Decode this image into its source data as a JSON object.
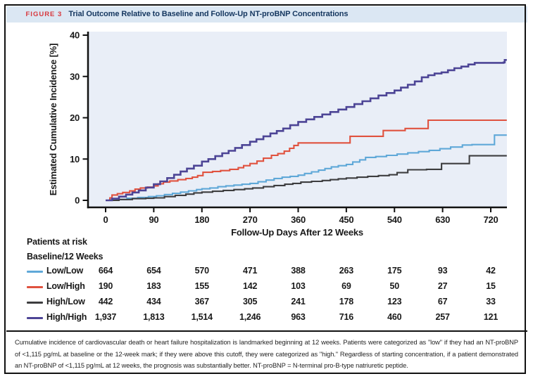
{
  "figure_header": {
    "label": "FIGURE 3",
    "title": "Trial Outcome Relative to Baseline and Follow-Up NT-proBNP Concentrations"
  },
  "chart_data": {
    "type": "line",
    "subtype": "step-cumulative-incidence",
    "title": "",
    "xlabel": "Follow-Up Days After 12 Weeks",
    "ylabel": "Estimated Cumulative Incidence [%]",
    "x_ticks": [
      0,
      90,
      180,
      270,
      360,
      450,
      540,
      630,
      720
    ],
    "y_ticks": [
      0,
      10,
      20,
      30,
      40
    ],
    "xlim": [
      0,
      760
    ],
    "ylim": [
      0,
      40
    ],
    "grid": false,
    "legend_position": "patients-at-risk-table",
    "plot_bg": "#e9eef7",
    "axis_color": "#111111",
    "series": [
      {
        "name": "Low/Low",
        "color": "#5fa8d8",
        "points": [
          [
            0,
            0
          ],
          [
            20,
            0.2
          ],
          [
            40,
            0.5
          ],
          [
            60,
            0.7
          ],
          [
            80,
            0.9
          ],
          [
            95,
            1.1
          ],
          [
            110,
            1.4
          ],
          [
            125,
            1.7
          ],
          [
            140,
            2.0
          ],
          [
            155,
            2.3
          ],
          [
            170,
            2.6
          ],
          [
            180,
            2.8
          ],
          [
            195,
            3.0
          ],
          [
            210,
            3.3
          ],
          [
            225,
            3.5
          ],
          [
            240,
            3.7
          ],
          [
            255,
            3.9
          ],
          [
            270,
            4.1
          ],
          [
            285,
            4.5
          ],
          [
            300,
            4.9
          ],
          [
            315,
            5.3
          ],
          [
            330,
            5.6
          ],
          [
            345,
            5.8
          ],
          [
            360,
            6.1
          ],
          [
            372,
            6.5
          ],
          [
            385,
            6.9
          ],
          [
            398,
            7.3
          ],
          [
            410,
            7.7
          ],
          [
            422,
            8.1
          ],
          [
            435,
            8.4
          ],
          [
            450,
            8.7
          ],
          [
            462,
            9.3
          ],
          [
            475,
            9.8
          ],
          [
            486,
            10.4
          ],
          [
            505,
            10.6
          ],
          [
            525,
            10.9
          ],
          [
            545,
            11.2
          ],
          [
            565,
            11.5
          ],
          [
            585,
            11.8
          ],
          [
            605,
            12.1
          ],
          [
            625,
            12.5
          ],
          [
            645,
            12.9
          ],
          [
            667,
            13.4
          ],
          [
            685,
            13.5
          ],
          [
            727,
            15.8
          ],
          [
            750,
            15.8
          ]
        ]
      },
      {
        "name": "Low/High",
        "color": "#e0523f",
        "points": [
          [
            0,
            0
          ],
          [
            8,
            0.6
          ],
          [
            12,
            1.3
          ],
          [
            22,
            1.6
          ],
          [
            32,
            1.9
          ],
          [
            45,
            2.3
          ],
          [
            55,
            2.7
          ],
          [
            65,
            3.0
          ],
          [
            78,
            3.2
          ],
          [
            90,
            3.5
          ],
          [
            98,
            4.0
          ],
          [
            108,
            4.4
          ],
          [
            120,
            4.7
          ],
          [
            135,
            5.0
          ],
          [
            150,
            5.3
          ],
          [
            162,
            5.6
          ],
          [
            172,
            6.0
          ],
          [
            182,
            6.8
          ],
          [
            200,
            7.0
          ],
          [
            215,
            7.2
          ],
          [
            232,
            7.5
          ],
          [
            248,
            7.9
          ],
          [
            258,
            8.4
          ],
          [
            270,
            8.9
          ],
          [
            283,
            9.5
          ],
          [
            295,
            10.2
          ],
          [
            310,
            10.9
          ],
          [
            322,
            11.3
          ],
          [
            334,
            11.9
          ],
          [
            344,
            12.6
          ],
          [
            352,
            13.3
          ],
          [
            360,
            13.9
          ],
          [
            457,
            15.5
          ],
          [
            519,
            16.9
          ],
          [
            560,
            17.4
          ],
          [
            603,
            19.4
          ],
          [
            750,
            19.4
          ]
        ]
      },
      {
        "name": "High/Low",
        "color": "#3d3d3f",
        "points": [
          [
            0,
            0
          ],
          [
            25,
            0.2
          ],
          [
            50,
            0.4
          ],
          [
            75,
            0.5
          ],
          [
            90,
            0.6
          ],
          [
            110,
            0.9
          ],
          [
            130,
            1.2
          ],
          [
            150,
            1.5
          ],
          [
            165,
            1.8
          ],
          [
            180,
            2.0
          ],
          [
            200,
            2.2
          ],
          [
            220,
            2.4
          ],
          [
            240,
            2.6
          ],
          [
            260,
            2.8
          ],
          [
            275,
            3.0
          ],
          [
            295,
            3.3
          ],
          [
            315,
            3.6
          ],
          [
            335,
            3.9
          ],
          [
            350,
            4.1
          ],
          [
            365,
            4.4
          ],
          [
            385,
            4.6
          ],
          [
            405,
            4.8
          ],
          [
            420,
            5.0
          ],
          [
            435,
            5.2
          ],
          [
            450,
            5.4
          ],
          [
            470,
            5.6
          ],
          [
            490,
            5.8
          ],
          [
            510,
            6.0
          ],
          [
            530,
            6.2
          ],
          [
            545,
            6.7
          ],
          [
            565,
            7.4
          ],
          [
            600,
            7.5
          ],
          [
            628,
            8.9
          ],
          [
            680,
            10.8
          ],
          [
            750,
            10.8
          ]
        ]
      },
      {
        "name": "High/High",
        "color": "#4d4596",
        "points": [
          [
            0,
            0
          ],
          [
            12,
            0.4
          ],
          [
            25,
            0.9
          ],
          [
            38,
            1.4
          ],
          [
            50,
            1.9
          ],
          [
            62,
            2.4
          ],
          [
            75,
            3.1
          ],
          [
            90,
            3.9
          ],
          [
            102,
            4.6
          ],
          [
            115,
            5.4
          ],
          [
            128,
            6.2
          ],
          [
            140,
            7.0
          ],
          [
            152,
            7.7
          ],
          [
            165,
            8.4
          ],
          [
            180,
            9.4
          ],
          [
            192,
            10.0
          ],
          [
            205,
            10.7
          ],
          [
            218,
            11.4
          ],
          [
            230,
            12.0
          ],
          [
            242,
            12.7
          ],
          [
            255,
            13.4
          ],
          [
            270,
            14.2
          ],
          [
            282,
            14.8
          ],
          [
            295,
            15.5
          ],
          [
            308,
            16.2
          ],
          [
            320,
            16.8
          ],
          [
            332,
            17.4
          ],
          [
            345,
            18.2
          ],
          [
            360,
            19.0
          ],
          [
            375,
            19.6
          ],
          [
            390,
            20.2
          ],
          [
            405,
            20.8
          ],
          [
            420,
            21.4
          ],
          [
            435,
            22.0
          ],
          [
            450,
            22.6
          ],
          [
            465,
            23.3
          ],
          [
            480,
            24.0
          ],
          [
            495,
            24.7
          ],
          [
            510,
            25.4
          ],
          [
            525,
            26.0
          ],
          [
            540,
            26.6
          ],
          [
            552,
            27.3
          ],
          [
            565,
            28.0
          ],
          [
            578,
            28.8
          ],
          [
            591,
            29.8
          ],
          [
            603,
            30.3
          ],
          [
            615,
            30.7
          ],
          [
            628,
            31.0
          ],
          [
            640,
            31.5
          ],
          [
            652,
            32.0
          ],
          [
            665,
            32.4
          ],
          [
            678,
            32.9
          ],
          [
            690,
            33.3
          ],
          [
            744,
            33.4
          ],
          [
            746,
            34.0
          ],
          [
            750,
            34.0
          ]
        ]
      }
    ]
  },
  "risk_table": {
    "title": "Patients at risk",
    "subtitle": "Baseline/12 Weeks",
    "time_points": [
      0,
      90,
      180,
      270,
      360,
      450,
      540,
      630,
      720
    ],
    "rows": [
      {
        "label": "Low/Low",
        "color": "#5fa8d8",
        "counts": [
          "664",
          "654",
          "570",
          "471",
          "388",
          "263",
          "175",
          "93",
          "42"
        ]
      },
      {
        "label": "Low/High",
        "color": "#e0523f",
        "counts": [
          "190",
          "183",
          "155",
          "142",
          "103",
          "69",
          "50",
          "27",
          "15"
        ]
      },
      {
        "label": "High/Low",
        "color": "#3d3d3f",
        "counts": [
          "442",
          "434",
          "367",
          "305",
          "241",
          "178",
          "123",
          "67",
          "33"
        ]
      },
      {
        "label": "High/High",
        "color": "#4d4596",
        "counts": [
          "1,937",
          "1,813",
          "1,514",
          "1,246",
          "963",
          "716",
          "460",
          "257",
          "121"
        ]
      }
    ]
  },
  "caption": "Cumulative incidence of cardiovascular death or heart failure hospitalization is landmarked beginning at 12 weeks. Patients were categorized as \"low\" if they had an NT-proBNP of <1,115 pg/mL at baseline or the 12-week mark; if they were above this cutoff, they were categorized as \"high.\" Regardless of starting concentration, if a patient demonstrated an NT-proBNP of <1,115 pg/mL at 12 weeks, the prognosis was substantially better. NT-proBNP = N-terminal pro-B-type natriuretic peptide."
}
